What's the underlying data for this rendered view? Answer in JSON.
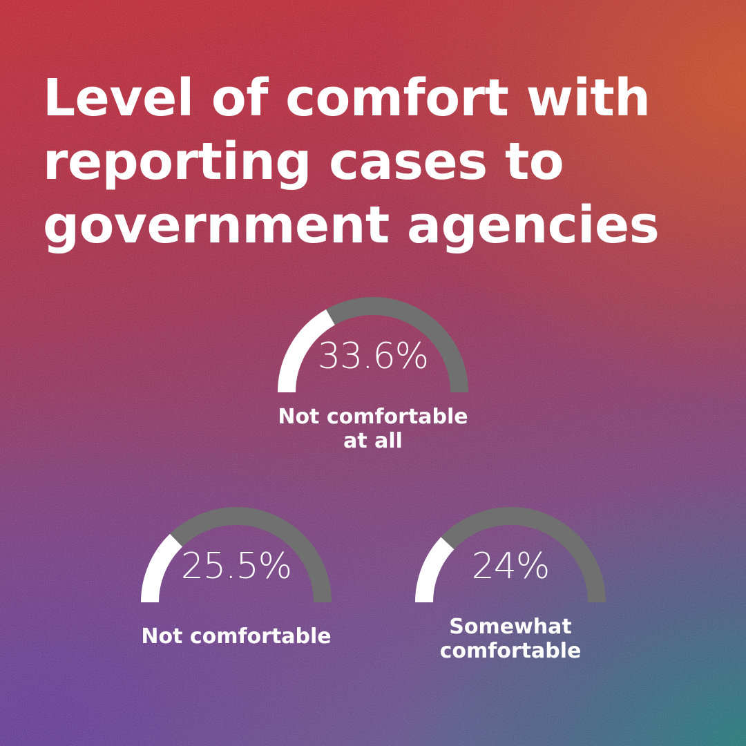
{
  "title_lines": [
    "Level of comfort with",
    "reporting cases to",
    "government agencies"
  ],
  "colors": {
    "gauge_fill": "#ffffff",
    "gauge_track": "#707070",
    "text": "#ffffff"
  },
  "chart_data": {
    "type": "gauge",
    "title": "Level of comfort with reporting cases to government agencies",
    "scale": [
      0,
      100
    ],
    "items": [
      {
        "value": 33.6,
        "display": "33.6%",
        "label_lines": [
          "Not comfortable",
          "at all"
        ]
      },
      {
        "value": 25.5,
        "display": "25.5%",
        "label_lines": [
          "Not comfortable"
        ]
      },
      {
        "value": 24,
        "display": "24%",
        "label_lines": [
          "Somewhat",
          "comfortable"
        ]
      }
    ]
  }
}
